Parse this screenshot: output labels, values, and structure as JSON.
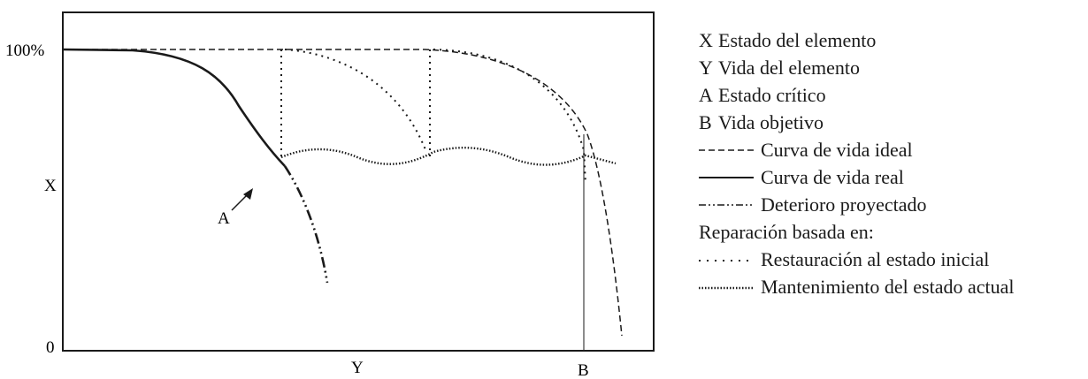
{
  "diagram": {
    "y_top_label": "100%",
    "y_bottom_label": "0",
    "y_axis_label": "X",
    "x_axis_label": "Y",
    "b_label": "B",
    "a_label": "A"
  },
  "legend": {
    "items": [
      {
        "key": "X",
        "text": "Estado del elemento"
      },
      {
        "key": "Y",
        "text": "Vida del elemento"
      },
      {
        "key": "A",
        "text": "Estado crítico"
      },
      {
        "key": "B",
        "text": "Vida objetivo"
      }
    ],
    "lines": [
      {
        "style": "dashed",
        "text": "Curva de vida ideal"
      },
      {
        "style": "solid",
        "text": "Curva de vida real"
      },
      {
        "style": "dashdot",
        "text": "Deterioro proyectado"
      }
    ],
    "repair_heading": "Reparación basada en:",
    "repairs": [
      {
        "style": "sparse-dotted",
        "text": "Restauración al estado inicial"
      },
      {
        "style": "dense-dotted",
        "text": "Mantenimiento del estado actual"
      }
    ]
  }
}
